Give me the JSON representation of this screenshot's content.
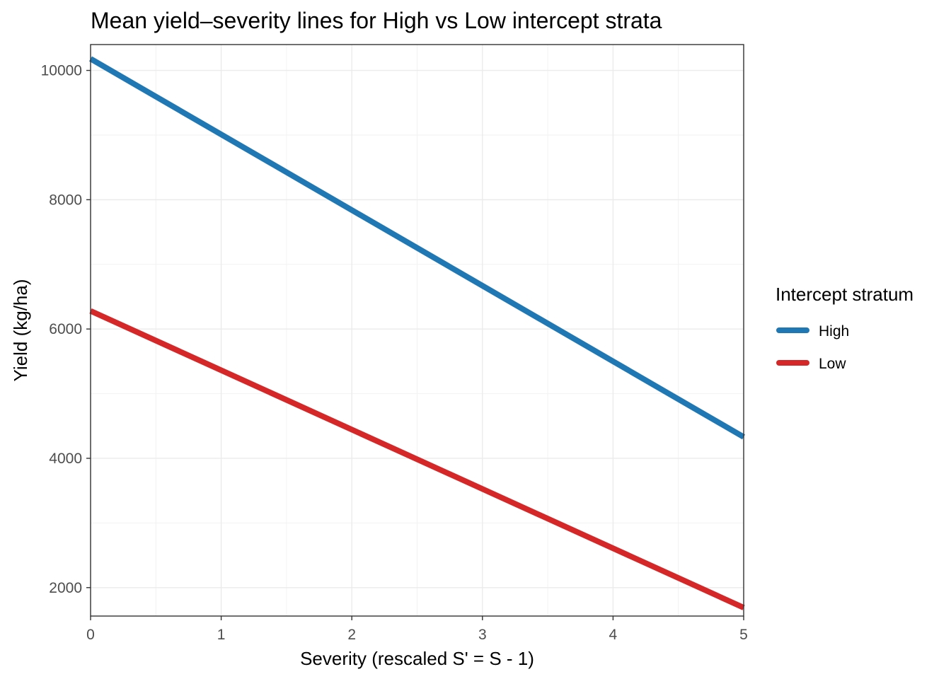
{
  "chart_data": {
    "type": "line",
    "title": "Mean yield–severity lines for High vs Low intercept strata",
    "xlabel": "Severity (rescaled S' = S - 1)",
    "ylabel": "Yield (kg/ha)",
    "xlim": [
      0,
      5
    ],
    "ylim": [
      1560,
      10400
    ],
    "x_ticks": [
      0,
      1,
      2,
      3,
      4,
      5
    ],
    "x_tick_labels": [
      "0",
      "1",
      "2",
      "3",
      "4",
      "5"
    ],
    "y_ticks": [
      2000,
      4000,
      6000,
      8000,
      10000
    ],
    "y_tick_labels": [
      "2000",
      "4000",
      "6000",
      "8000",
      "10000"
    ],
    "grid": true,
    "legend_title": "Intercept stratum",
    "legend_position": "right",
    "series": [
      {
        "name": "High",
        "color": "#1f77b4",
        "x": [
          0,
          5
        ],
        "y": [
          10180,
          4330
        ]
      },
      {
        "name": "Low",
        "color": "#d62728",
        "x": [
          0,
          5
        ],
        "y": [
          6280,
          1690
        ]
      }
    ]
  }
}
